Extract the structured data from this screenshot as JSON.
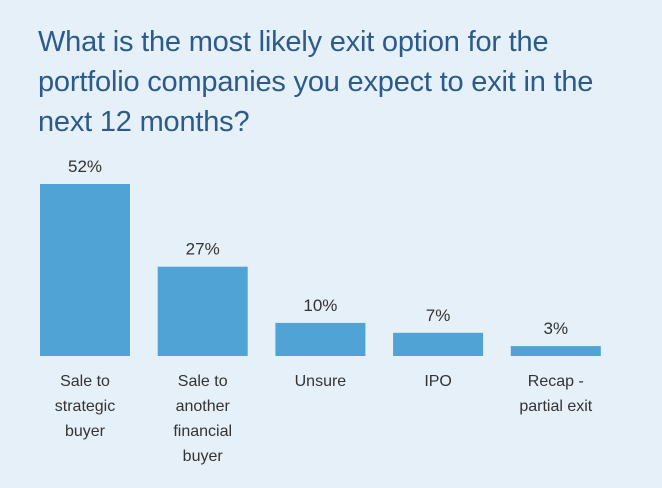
{
  "chart_data": {
    "type": "bar",
    "title": "What is the most likely exit option for the portfolio companies you expect to exit in the next 12 months?",
    "categories": [
      [
        "Sale to",
        "strategic",
        "buyer"
      ],
      [
        "Sale to",
        "another",
        "financial",
        "buyer"
      ],
      [
        "Unsure"
      ],
      [
        "IPO"
      ],
      [
        "Recap -",
        "partial exit"
      ]
    ],
    "values": [
      52,
      27,
      10,
      7,
      3
    ],
    "value_labels": [
      "52%",
      "27%",
      "10%",
      "7%",
      "3%"
    ],
    "unit": "%",
    "ylim": [
      0,
      52
    ],
    "grid": false,
    "legend": "none",
    "bar_color": "#4fa3d5"
  }
}
